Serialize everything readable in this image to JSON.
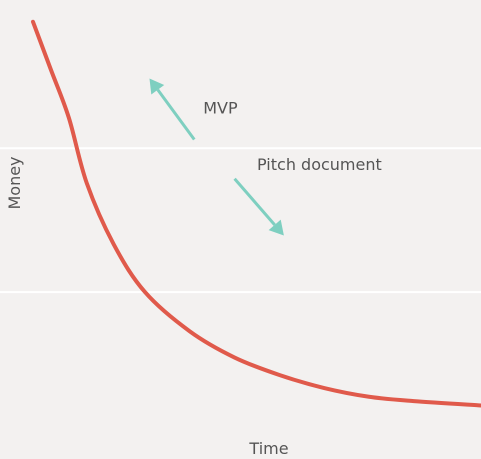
{
  "chart_data": {
    "type": "line",
    "title": "",
    "xlabel": "Time",
    "ylabel": "Money",
    "xlim": [
      0,
      1
    ],
    "ylim": [
      0,
      1
    ],
    "grid": true,
    "gridlines_y": [
      0.33,
      0.66
    ],
    "series": [
      {
        "values": [
          {
            "x": 0.0,
            "y": 0.95
          },
          {
            "x": 0.04,
            "y": 0.84
          },
          {
            "x": 0.08,
            "y": 0.73
          },
          {
            "x": 0.12,
            "y": 0.58
          },
          {
            "x": 0.18,
            "y": 0.44
          },
          {
            "x": 0.25,
            "y": 0.33
          },
          {
            "x": 0.35,
            "y": 0.24
          },
          {
            "x": 0.45,
            "y": 0.18
          },
          {
            "x": 0.55,
            "y": 0.14
          },
          {
            "x": 0.65,
            "y": 0.11
          },
          {
            "x": 0.75,
            "y": 0.09
          },
          {
            "x": 0.85,
            "y": 0.08
          },
          {
            "x": 1.0,
            "y": 0.07
          }
        ]
      }
    ],
    "annotations": [
      {
        "text": "MVP",
        "arrow": {
          "from": {
            "x": 0.36,
            "y": 0.68
          },
          "to": {
            "x": 0.26,
            "y": 0.82
          }
        },
        "label_pos": {
          "x": 0.38,
          "y": 0.74
        }
      },
      {
        "text": "Pitch document",
        "arrow": {
          "from": {
            "x": 0.45,
            "y": 0.59
          },
          "to": {
            "x": 0.56,
            "y": 0.46
          }
        },
        "label_pos": {
          "x": 0.5,
          "y": 0.61
        }
      }
    ]
  },
  "colors": {
    "background": "#f3f1f0",
    "gridline": "#ffffff",
    "curve": "#e05a4b",
    "arrow": "#7ecfc0",
    "text": "#555555"
  }
}
